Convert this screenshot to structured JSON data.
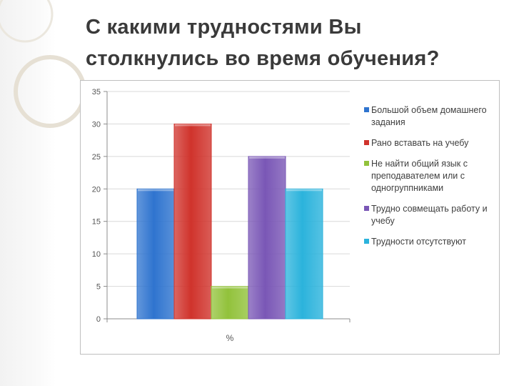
{
  "slide": {
    "title_line1": "С какими трудностями Вы",
    "title_line2": "столкнулись во время обучения?"
  },
  "chart_data": {
    "type": "bar",
    "xlabel": "%",
    "ylim": [
      0,
      35
    ],
    "yticks": [
      0,
      5,
      10,
      15,
      20,
      25,
      30,
      35
    ],
    "grid": true,
    "legend_position": "right",
    "series": [
      {
        "name": "Большой объем домашнего задания",
        "value": 20,
        "color": "#2f74cf"
      },
      {
        "name": "Рано вставать на учебу",
        "value": 30,
        "color": "#d0332c"
      },
      {
        "name": "Не найти общий язык с преподавателем или с одногруппниками",
        "value": 5,
        "color": "#92c23b"
      },
      {
        "name": "Трудно совмещать работу и учебу",
        "value": 25,
        "color": "#7a57b6"
      },
      {
        "name": "Трудности отсутствуют",
        "value": 20,
        "color": "#2bb3dc"
      }
    ]
  }
}
